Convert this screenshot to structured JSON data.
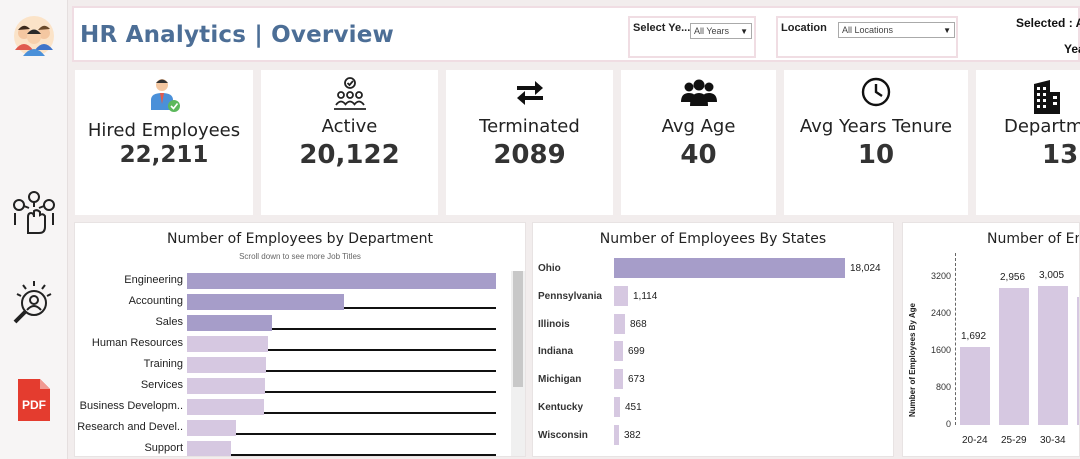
{
  "header": {
    "title": "HR Analytics  |  Overview",
    "filters": [
      {
        "label": "Select Ye...",
        "value": "All Years"
      },
      {
        "label": "Location",
        "value": "All Locations"
      }
    ],
    "selected_label": "Selected : A",
    "selected_sub": "Yea"
  },
  "sidebar": {
    "items": [
      {
        "icon": "team-icon"
      },
      {
        "icon": "hand-network-icon"
      },
      {
        "icon": "magnifier-person-icon"
      },
      {
        "icon": "pdf-icon",
        "label": "PDF"
      }
    ]
  },
  "kpis": [
    {
      "label": "Hired Employees",
      "value": "22,211",
      "icon": "hired-employee-icon"
    },
    {
      "label": "Active",
      "value": "20,122",
      "icon": "active-team-icon"
    },
    {
      "label": "Terminated",
      "value": "2089",
      "icon": "swap-arrows-icon"
    },
    {
      "label": "Avg Age",
      "value": "40",
      "icon": "group-icon"
    },
    {
      "label": "Avg Years Tenure",
      "value": "10",
      "icon": "clock-icon"
    },
    {
      "label": "Departme",
      "value": "13",
      "icon": "building-icon"
    }
  ],
  "colors": {
    "bar_light": "#d6c8e1",
    "bar_dark": "#a69dc9",
    "title": "#4c6e96"
  },
  "chart_data": [
    {
      "type": "bar",
      "orientation": "horizontal",
      "title": "Number of Employees by Department",
      "subtitle": "Scroll down to see more Job Titles",
      "categories": [
        "Engineering",
        "Accounting",
        "Sales",
        "Human Resources",
        "Training",
        "Services",
        "Business Developm..",
        "Research and Devel..",
        "Support"
      ],
      "values": [
        6900,
        3500,
        1900,
        1800,
        1760,
        1740,
        1720,
        1100,
        980
      ]
    },
    {
      "type": "bar",
      "orientation": "horizontal",
      "title": "Number of Employees By States",
      "categories": [
        "Ohio",
        "Pennsylvania",
        "Illinois",
        "Indiana",
        "Michigan",
        "Kentucky",
        "Wisconsin"
      ],
      "values": [
        18024,
        1114,
        868,
        699,
        673,
        451,
        382
      ],
      "value_labels": [
        "18,024",
        "1,114",
        "868",
        "699",
        "673",
        "451",
        "382"
      ]
    },
    {
      "type": "bar",
      "title": "Number of Em",
      "ylabel": "Number of Employees By Age",
      "categories": [
        "20-24",
        "25-29",
        "30-34"
      ],
      "values": [
        1692,
        2956,
        3005
      ],
      "value_labels": [
        "1,692",
        "2,956",
        "3,005"
      ],
      "yticks": [
        "3200",
        "2400",
        "1600",
        "800",
        "0"
      ],
      "ylim": [
        0,
        3600
      ]
    }
  ]
}
